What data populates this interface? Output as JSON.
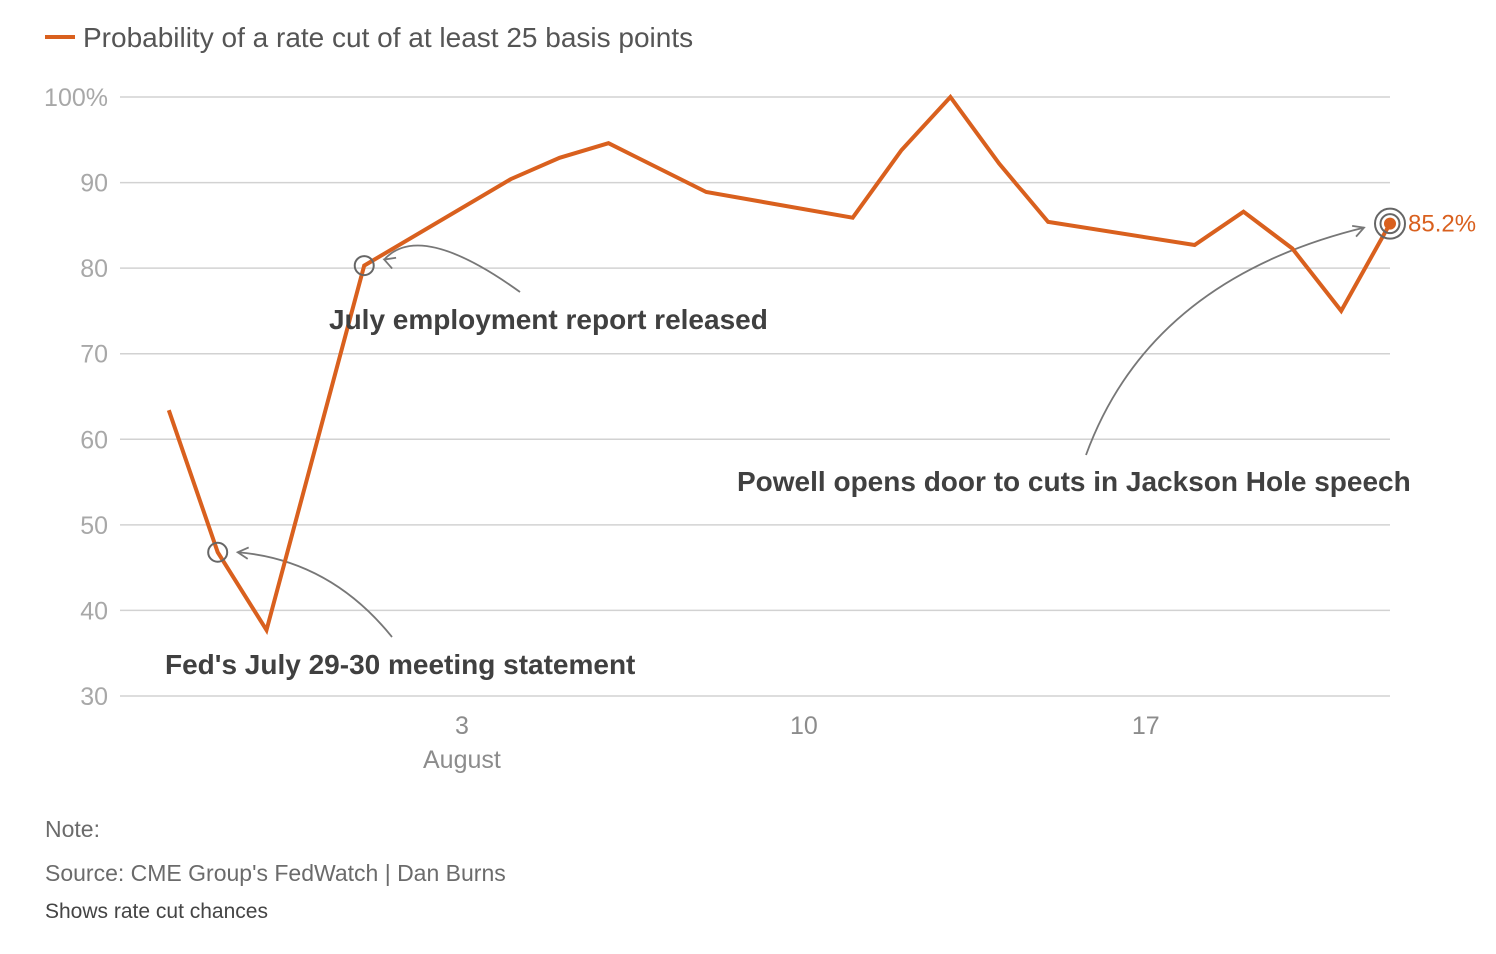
{
  "legend": {
    "label": "Probability of a rate cut of at least 25 basis points",
    "color": "#d9601e"
  },
  "chart_data": {
    "type": "line",
    "series": [
      {
        "name": "Probability of a rate cut of at least 25 basis points",
        "color": "#d9601e",
        "points": [
          {
            "date": "2025-07-28",
            "value": 63.4
          },
          {
            "date": "2025-07-29",
            "value": 46.8
          },
          {
            "date": "2025-07-30",
            "value": 37.7
          },
          {
            "date": "2025-08-01",
            "value": 80.3
          },
          {
            "date": "2025-08-04",
            "value": 90.4
          },
          {
            "date": "2025-08-05",
            "value": 92.9
          },
          {
            "date": "2025-08-06",
            "value": 94.6
          },
          {
            "date": "2025-08-08",
            "value": 88.9
          },
          {
            "date": "2025-08-11",
            "value": 85.9
          },
          {
            "date": "2025-08-12",
            "value": 93.8
          },
          {
            "date": "2025-08-13",
            "value": 100.0
          },
          {
            "date": "2025-08-14",
            "value": 92.2
          },
          {
            "date": "2025-08-15",
            "value": 85.4
          },
          {
            "date": "2025-08-18",
            "value": 82.7
          },
          {
            "date": "2025-08-19",
            "value": 86.6
          },
          {
            "date": "2025-08-20",
            "value": 82.3
          },
          {
            "date": "2025-08-21",
            "value": 75.0
          },
          {
            "date": "2025-08-22",
            "value": 85.2
          }
        ]
      }
    ],
    "x_ticks": [
      {
        "date": "2025-08-03",
        "label": "3",
        "sublabel": "August"
      },
      {
        "date": "2025-08-10",
        "label": "10",
        "sublabel": ""
      },
      {
        "date": "2025-08-17",
        "label": "17",
        "sublabel": ""
      }
    ],
    "y_ticks": [
      {
        "value": 100,
        "label": "100%"
      },
      {
        "value": 90,
        "label": "90"
      },
      {
        "value": 80,
        "label": "80"
      },
      {
        "value": 70,
        "label": "70"
      },
      {
        "value": 60,
        "label": "60"
      },
      {
        "value": 50,
        "label": "50"
      },
      {
        "value": 40,
        "label": "40"
      },
      {
        "value": 30,
        "label": "30"
      }
    ],
    "ylim": [
      30,
      100
    ],
    "xlim": [
      "2025-07-27",
      "2025-08-22"
    ],
    "grid": true,
    "legend_position": "top-left",
    "end_label": "85.2%",
    "annotations": [
      {
        "text": "Fed's July 29-30 meeting statement",
        "date": "2025-07-29",
        "value": 46.8
      },
      {
        "text": "July employment report released",
        "date": "2025-08-01",
        "value": 80.3
      },
      {
        "text": "Powell opens door to cuts in Jackson Hole speech",
        "date": "2025-08-22",
        "value": 85.2
      }
    ]
  },
  "footer": {
    "note": "Note:",
    "source": "Source: CME Group's FedWatch | Dan Burns",
    "description": "Shows rate cut chances"
  }
}
